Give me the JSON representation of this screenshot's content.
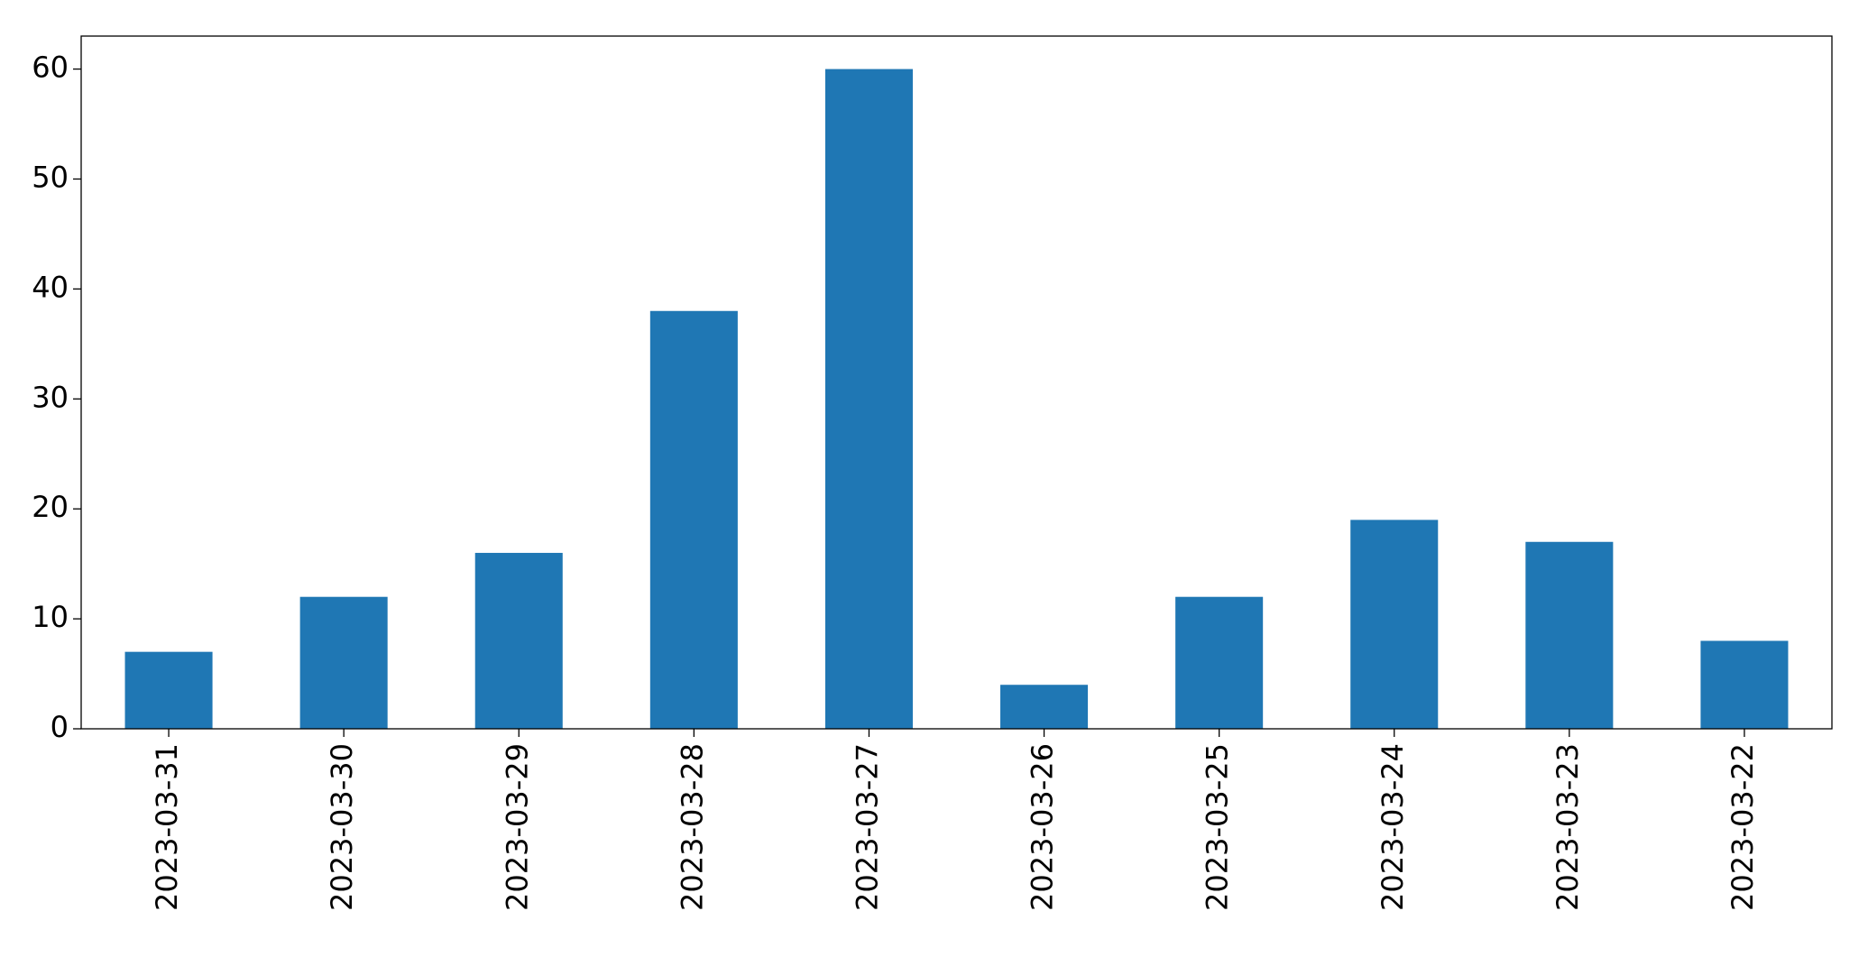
{
  "chart_data": {
    "type": "bar",
    "categories": [
      "2023-03-31",
      "2023-03-30",
      "2023-03-29",
      "2023-03-28",
      "2023-03-27",
      "2023-03-26",
      "2023-03-25",
      "2023-03-24",
      "2023-03-23",
      "2023-03-22"
    ],
    "values": [
      7,
      12,
      16,
      38,
      60,
      4,
      12,
      19,
      17,
      8
    ],
    "color": "#1f77b4",
    "ylim": [
      0,
      63
    ],
    "yticks": [
      0,
      10,
      20,
      30,
      40,
      50,
      60
    ],
    "grid": false
  }
}
